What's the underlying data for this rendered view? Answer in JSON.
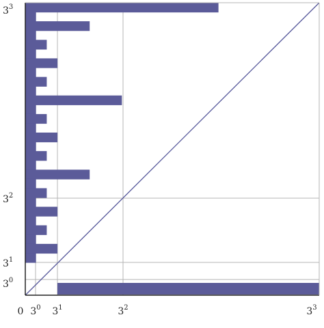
{
  "chart_data": {
    "type": "bar",
    "scale": "piecewise power-of-three",
    "grid": true,
    "colors": {
      "bar": "#5b5b99",
      "grid": "#b4b4b4",
      "axis": "#222222",
      "diagonal": "#55579a"
    },
    "x_ticks": [
      {
        "base": "0",
        "exp": "",
        "value": 0
      },
      {
        "base": "3",
        "exp": "0",
        "value": 1
      },
      {
        "base": "3",
        "exp": "1",
        "value": 3
      },
      {
        "base": "3",
        "exp": "2",
        "value": 9
      },
      {
        "base": "3",
        "exp": "3",
        "value": 27
      }
    ],
    "y_ticks": [
      {
        "base": "3",
        "exp": "0",
        "value": 1
      },
      {
        "base": "3",
        "exp": "1",
        "value": 3
      },
      {
        "base": "3",
        "exp": "2",
        "value": 9
      },
      {
        "base": "3",
        "exp": "3",
        "value": 27
      }
    ],
    "diagonal": [
      [
        0,
        0
      ],
      [
        27,
        27
      ]
    ],
    "horizontal_bar": {
      "y": [
        0.25,
        0.75
      ],
      "x": [
        3,
        27
      ]
    },
    "row_bars": [
      {
        "y": [
          1,
          2
        ],
        "x": [
          0,
          1
        ]
      },
      {
        "y": [
          2,
          3
        ],
        "x": [
          0,
          3
        ]
      },
      {
        "y": [
          3,
          4
        ],
        "x": [
          0,
          1
        ]
      },
      {
        "y": [
          4,
          5
        ],
        "x": [
          0,
          2
        ]
      },
      {
        "y": [
          5,
          6
        ],
        "x": [
          0,
          1
        ]
      },
      {
        "y": [
          6,
          7
        ],
        "x": [
          0,
          3
        ]
      },
      {
        "y": [
          7,
          8
        ],
        "x": [
          0,
          1
        ]
      },
      {
        "y": [
          8,
          9
        ],
        "x": [
          0,
          2
        ]
      },
      {
        "y": [
          9,
          10
        ],
        "x": [
          0,
          1
        ]
      },
      {
        "y": [
          10,
          11
        ],
        "x": [
          0,
          6
        ]
      },
      {
        "y": [
          11,
          12
        ],
        "x": [
          0,
          1
        ]
      },
      {
        "y": [
          12,
          13
        ],
        "x": [
          0,
          2
        ]
      },
      {
        "y": [
          13,
          14
        ],
        "x": [
          0,
          1
        ]
      },
      {
        "y": [
          14,
          15
        ],
        "x": [
          0,
          3
        ]
      },
      {
        "y": [
          15,
          16
        ],
        "x": [
          0,
          1
        ]
      },
      {
        "y": [
          16,
          17
        ],
        "x": [
          0,
          2
        ]
      },
      {
        "y": [
          17,
          18
        ],
        "x": [
          0,
          1
        ]
      },
      {
        "y": [
          18,
          19
        ],
        "x": [
          0,
          9
        ]
      },
      {
        "y": [
          19,
          20
        ],
        "x": [
          0,
          1
        ]
      },
      {
        "y": [
          20,
          21
        ],
        "x": [
          0,
          2
        ]
      },
      {
        "y": [
          21,
          22
        ],
        "x": [
          0,
          1
        ]
      },
      {
        "y": [
          22,
          23
        ],
        "x": [
          0,
          3
        ]
      },
      {
        "y": [
          23,
          24
        ],
        "x": [
          0,
          1
        ]
      },
      {
        "y": [
          24,
          25
        ],
        "x": [
          0,
          2
        ]
      },
      {
        "y": [
          25,
          26
        ],
        "x": [
          0,
          1
        ]
      },
      {
        "y": [
          26,
          27
        ],
        "x": [
          0,
          6
        ]
      },
      {
        "y": [
          27,
          28
        ],
        "x": [
          0,
          1
        ]
      },
      {
        "y": [
          28,
          29
        ],
        "x": [
          0,
          18
        ]
      }
    ]
  }
}
